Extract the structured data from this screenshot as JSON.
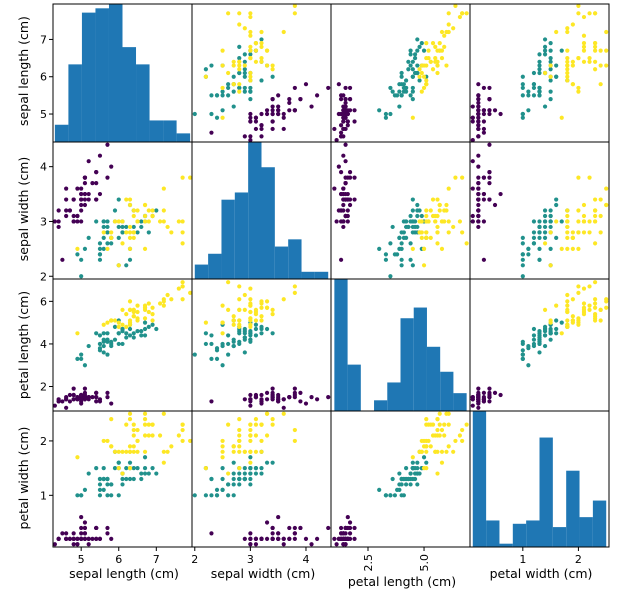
{
  "chart_data": {
    "type": "scatter_matrix",
    "variables": [
      "sepal length (cm)",
      "sepal width (cm)",
      "petal length (cm)",
      "petal width (cm)"
    ],
    "ranges": [
      [
        4.25,
        7.95
      ],
      [
        1.95,
        4.45
      ],
      [
        0.85,
        7.05
      ],
      [
        0.05,
        2.55
      ]
    ],
    "x_ticks": [
      {
        "values": [
          5,
          6,
          7
        ],
        "labels": [
          "5",
          "6",
          "7"
        ]
      },
      {
        "values": [
          2,
          3,
          4
        ],
        "labels": [
          "2",
          "3",
          "4"
        ]
      },
      {
        "values": [
          2.5,
          5.0
        ],
        "labels": [
          "2.5",
          "5.0"
        ]
      },
      {
        "values": [
          1,
          2
        ],
        "labels": [
          "1",
          "2"
        ]
      }
    ],
    "y_ticks": [
      {
        "values": [
          5,
          6,
          7
        ],
        "labels": [
          "5",
          "6",
          "7"
        ]
      },
      {
        "values": [
          2,
          3,
          4
        ],
        "labels": [
          "2",
          "3",
          "4"
        ]
      },
      {
        "values": [
          2,
          4,
          6
        ],
        "labels": [
          "2",
          "4",
          "6"
        ]
      },
      {
        "values": [
          1,
          2
        ],
        "labels": [
          "1",
          "2"
        ]
      }
    ],
    "class_colors": [
      "#440154",
      "#21918c",
      "#fde725"
    ],
    "histogram_color": "#1f77b4",
    "diagonal": "histogram",
    "bins": 10,
    "histograms": [
      [
        4,
        18,
        30,
        31,
        32,
        22,
        18,
        5,
        5,
        2
      ],
      [
        4,
        7,
        22,
        24,
        38,
        31,
        9,
        11,
        2,
        2
      ],
      [
        37,
        13,
        0,
        3,
        8,
        26,
        29,
        18,
        11,
        5
      ],
      [
        41,
        8,
        1,
        7,
        8,
        33,
        6,
        23,
        9,
        14
      ]
    ],
    "data": [
      [
        5.1,
        3.5,
        1.4,
        0.2,
        0
      ],
      [
        4.9,
        3.0,
        1.4,
        0.2,
        0
      ],
      [
        4.7,
        3.2,
        1.3,
        0.2,
        0
      ],
      [
        4.6,
        3.1,
        1.5,
        0.2,
        0
      ],
      [
        5.0,
        3.6,
        1.4,
        0.2,
        0
      ],
      [
        5.4,
        3.9,
        1.7,
        0.4,
        0
      ],
      [
        4.6,
        3.4,
        1.4,
        0.3,
        0
      ],
      [
        5.0,
        3.4,
        1.5,
        0.2,
        0
      ],
      [
        4.4,
        2.9,
        1.4,
        0.2,
        0
      ],
      [
        4.9,
        3.1,
        1.5,
        0.1,
        0
      ],
      [
        5.4,
        3.7,
        1.5,
        0.2,
        0
      ],
      [
        4.8,
        3.4,
        1.6,
        0.2,
        0
      ],
      [
        4.8,
        3.0,
        1.4,
        0.1,
        0
      ],
      [
        4.3,
        3.0,
        1.1,
        0.1,
        0
      ],
      [
        5.8,
        4.0,
        1.2,
        0.2,
        0
      ],
      [
        5.7,
        4.4,
        1.5,
        0.4,
        0
      ],
      [
        5.4,
        3.9,
        1.3,
        0.4,
        0
      ],
      [
        5.1,
        3.5,
        1.4,
        0.3,
        0
      ],
      [
        5.7,
        3.8,
        1.7,
        0.3,
        0
      ],
      [
        5.1,
        3.8,
        1.5,
        0.3,
        0
      ],
      [
        5.4,
        3.4,
        1.7,
        0.2,
        0
      ],
      [
        5.1,
        3.7,
        1.5,
        0.4,
        0
      ],
      [
        4.6,
        3.6,
        1.0,
        0.2,
        0
      ],
      [
        5.1,
        3.3,
        1.7,
        0.5,
        0
      ],
      [
        4.8,
        3.4,
        1.9,
        0.2,
        0
      ],
      [
        5.0,
        3.0,
        1.6,
        0.2,
        0
      ],
      [
        5.0,
        3.4,
        1.6,
        0.4,
        0
      ],
      [
        5.2,
        3.5,
        1.5,
        0.2,
        0
      ],
      [
        5.2,
        3.4,
        1.4,
        0.2,
        0
      ],
      [
        4.7,
        3.2,
        1.6,
        0.2,
        0
      ],
      [
        4.8,
        3.1,
        1.6,
        0.2,
        0
      ],
      [
        5.4,
        3.4,
        1.5,
        0.4,
        0
      ],
      [
        5.2,
        4.1,
        1.5,
        0.1,
        0
      ],
      [
        5.5,
        4.2,
        1.4,
        0.2,
        0
      ],
      [
        4.9,
        3.1,
        1.5,
        0.2,
        0
      ],
      [
        5.0,
        3.2,
        1.2,
        0.2,
        0
      ],
      [
        5.5,
        3.5,
        1.3,
        0.2,
        0
      ],
      [
        4.9,
        3.6,
        1.4,
        0.1,
        0
      ],
      [
        4.4,
        3.0,
        1.3,
        0.2,
        0
      ],
      [
        5.1,
        3.4,
        1.5,
        0.2,
        0
      ],
      [
        5.0,
        3.5,
        1.3,
        0.3,
        0
      ],
      [
        4.5,
        2.3,
        1.3,
        0.3,
        0
      ],
      [
        4.4,
        3.2,
        1.3,
        0.2,
        0
      ],
      [
        5.0,
        3.5,
        1.6,
        0.6,
        0
      ],
      [
        5.1,
        3.8,
        1.9,
        0.4,
        0
      ],
      [
        4.8,
        3.0,
        1.4,
        0.3,
        0
      ],
      [
        5.1,
        3.8,
        1.6,
        0.2,
        0
      ],
      [
        4.6,
        3.2,
        1.4,
        0.2,
        0
      ],
      [
        5.3,
        3.7,
        1.5,
        0.2,
        0
      ],
      [
        5.0,
        3.3,
        1.4,
        0.2,
        0
      ],
      [
        7.0,
        3.2,
        4.7,
        1.4,
        1
      ],
      [
        6.4,
        3.2,
        4.5,
        1.5,
        1
      ],
      [
        6.9,
        3.1,
        4.9,
        1.5,
        1
      ],
      [
        5.5,
        2.3,
        4.0,
        1.3,
        1
      ],
      [
        6.5,
        2.8,
        4.6,
        1.5,
        1
      ],
      [
        5.7,
        2.8,
        4.5,
        1.3,
        1
      ],
      [
        6.3,
        3.3,
        4.7,
        1.6,
        1
      ],
      [
        4.9,
        2.4,
        3.3,
        1.0,
        1
      ],
      [
        6.6,
        2.9,
        4.6,
        1.3,
        1
      ],
      [
        5.2,
        2.7,
        3.9,
        1.4,
        1
      ],
      [
        5.0,
        2.0,
        3.5,
        1.0,
        1
      ],
      [
        5.9,
        3.0,
        4.2,
        1.5,
        1
      ],
      [
        6.0,
        2.2,
        4.0,
        1.0,
        1
      ],
      [
        6.1,
        2.9,
        4.7,
        1.4,
        1
      ],
      [
        5.6,
        2.9,
        3.6,
        1.3,
        1
      ],
      [
        6.7,
        3.1,
        4.4,
        1.4,
        1
      ],
      [
        5.6,
        3.0,
        4.5,
        1.5,
        1
      ],
      [
        5.8,
        2.7,
        4.1,
        1.0,
        1
      ],
      [
        6.2,
        2.2,
        4.5,
        1.5,
        1
      ],
      [
        5.6,
        2.5,
        3.9,
        1.1,
        1
      ],
      [
        5.9,
        3.2,
        4.8,
        1.8,
        1
      ],
      [
        6.1,
        2.8,
        4.0,
        1.3,
        1
      ],
      [
        6.3,
        2.5,
        4.9,
        1.5,
        1
      ],
      [
        6.1,
        2.8,
        4.7,
        1.2,
        1
      ],
      [
        6.4,
        2.9,
        4.3,
        1.3,
        1
      ],
      [
        6.6,
        3.0,
        4.4,
        1.4,
        1
      ],
      [
        6.8,
        2.8,
        4.8,
        1.4,
        1
      ],
      [
        6.7,
        3.0,
        5.0,
        1.7,
        1
      ],
      [
        6.0,
        2.9,
        4.5,
        1.5,
        1
      ],
      [
        5.7,
        2.6,
        3.5,
        1.0,
        1
      ],
      [
        5.5,
        2.4,
        3.8,
        1.1,
        1
      ],
      [
        5.5,
        2.4,
        3.7,
        1.0,
        1
      ],
      [
        5.8,
        2.7,
        3.9,
        1.2,
        1
      ],
      [
        6.0,
        2.7,
        5.1,
        1.6,
        1
      ],
      [
        5.4,
        3.0,
        4.5,
        1.5,
        1
      ],
      [
        6.0,
        3.4,
        4.5,
        1.6,
        1
      ],
      [
        6.7,
        3.1,
        4.7,
        1.5,
        1
      ],
      [
        6.3,
        2.3,
        4.4,
        1.3,
        1
      ],
      [
        5.6,
        3.0,
        4.1,
        1.3,
        1
      ],
      [
        5.5,
        2.5,
        4.0,
        1.3,
        1
      ],
      [
        5.5,
        2.6,
        4.4,
        1.2,
        1
      ],
      [
        6.1,
        3.0,
        4.6,
        1.4,
        1
      ],
      [
        5.8,
        2.6,
        4.0,
        1.2,
        1
      ],
      [
        5.0,
        2.3,
        3.3,
        1.0,
        1
      ],
      [
        5.6,
        2.7,
        4.2,
        1.3,
        1
      ],
      [
        5.7,
        3.0,
        4.2,
        1.2,
        1
      ],
      [
        5.7,
        2.9,
        4.2,
        1.3,
        1
      ],
      [
        6.2,
        2.9,
        4.3,
        1.3,
        1
      ],
      [
        5.1,
        2.5,
        3.0,
        1.1,
        1
      ],
      [
        5.7,
        2.8,
        4.1,
        1.3,
        1
      ],
      [
        6.3,
        3.3,
        6.0,
        2.5,
        2
      ],
      [
        5.8,
        2.7,
        5.1,
        1.9,
        2
      ],
      [
        7.1,
        3.0,
        5.9,
        2.1,
        2
      ],
      [
        6.3,
        2.9,
        5.6,
        1.8,
        2
      ],
      [
        6.5,
        3.0,
        5.8,
        2.2,
        2
      ],
      [
        7.6,
        3.0,
        6.6,
        2.1,
        2
      ],
      [
        4.9,
        2.5,
        4.5,
        1.7,
        2
      ],
      [
        7.3,
        2.9,
        6.3,
        1.8,
        2
      ],
      [
        6.7,
        2.5,
        5.8,
        1.8,
        2
      ],
      [
        7.2,
        3.6,
        6.1,
        2.5,
        2
      ],
      [
        6.5,
        3.2,
        5.1,
        2.0,
        2
      ],
      [
        6.4,
        2.7,
        5.3,
        1.9,
        2
      ],
      [
        6.8,
        3.0,
        5.5,
        2.1,
        2
      ],
      [
        5.7,
        2.5,
        5.0,
        2.0,
        2
      ],
      [
        5.8,
        2.8,
        5.1,
        2.4,
        2
      ],
      [
        6.4,
        3.2,
        5.3,
        2.3,
        2
      ],
      [
        6.5,
        3.0,
        5.5,
        1.8,
        2
      ],
      [
        7.7,
        3.8,
        6.7,
        2.2,
        2
      ],
      [
        7.7,
        2.6,
        6.9,
        2.3,
        2
      ],
      [
        6.0,
        2.2,
        5.0,
        1.5,
        2
      ],
      [
        6.9,
        3.2,
        5.7,
        2.3,
        2
      ],
      [
        5.6,
        2.8,
        4.9,
        2.0,
        2
      ],
      [
        7.7,
        2.8,
        6.7,
        2.0,
        2
      ],
      [
        6.3,
        2.7,
        4.9,
        1.8,
        2
      ],
      [
        6.7,
        3.3,
        5.7,
        2.1,
        2
      ],
      [
        7.2,
        3.2,
        6.0,
        1.8,
        2
      ],
      [
        6.2,
        2.8,
        4.8,
        1.8,
        2
      ],
      [
        6.1,
        3.0,
        4.9,
        1.8,
        2
      ],
      [
        6.4,
        2.8,
        5.6,
        2.1,
        2
      ],
      [
        7.2,
        3.0,
        5.8,
        1.6,
        2
      ],
      [
        7.4,
        2.8,
        6.1,
        1.9,
        2
      ],
      [
        7.9,
        3.8,
        6.4,
        2.0,
        2
      ],
      [
        6.4,
        2.8,
        5.6,
        2.2,
        2
      ],
      [
        6.3,
        2.8,
        5.1,
        1.5,
        2
      ],
      [
        6.1,
        2.6,
        5.6,
        1.4,
        2
      ],
      [
        7.7,
        3.0,
        6.1,
        2.3,
        2
      ],
      [
        6.3,
        3.4,
        5.6,
        2.4,
        2
      ],
      [
        6.4,
        3.1,
        5.5,
        1.8,
        2
      ],
      [
        6.0,
        3.0,
        4.8,
        1.8,
        2
      ],
      [
        6.9,
        3.1,
        5.4,
        2.1,
        2
      ],
      [
        6.7,
        3.1,
        5.6,
        2.4,
        2
      ],
      [
        6.9,
        3.1,
        5.1,
        2.3,
        2
      ],
      [
        5.8,
        2.7,
        5.1,
        1.9,
        2
      ],
      [
        6.8,
        3.2,
        5.9,
        2.3,
        2
      ],
      [
        6.7,
        3.3,
        5.7,
        2.5,
        2
      ],
      [
        6.7,
        3.0,
        5.2,
        2.3,
        2
      ],
      [
        6.3,
        2.5,
        5.0,
        1.9,
        2
      ],
      [
        6.5,
        3.0,
        5.2,
        2.0,
        2
      ],
      [
        6.2,
        3.4,
        5.4,
        2.3,
        2
      ],
      [
        5.9,
        3.0,
        5.1,
        1.8,
        2
      ]
    ]
  }
}
